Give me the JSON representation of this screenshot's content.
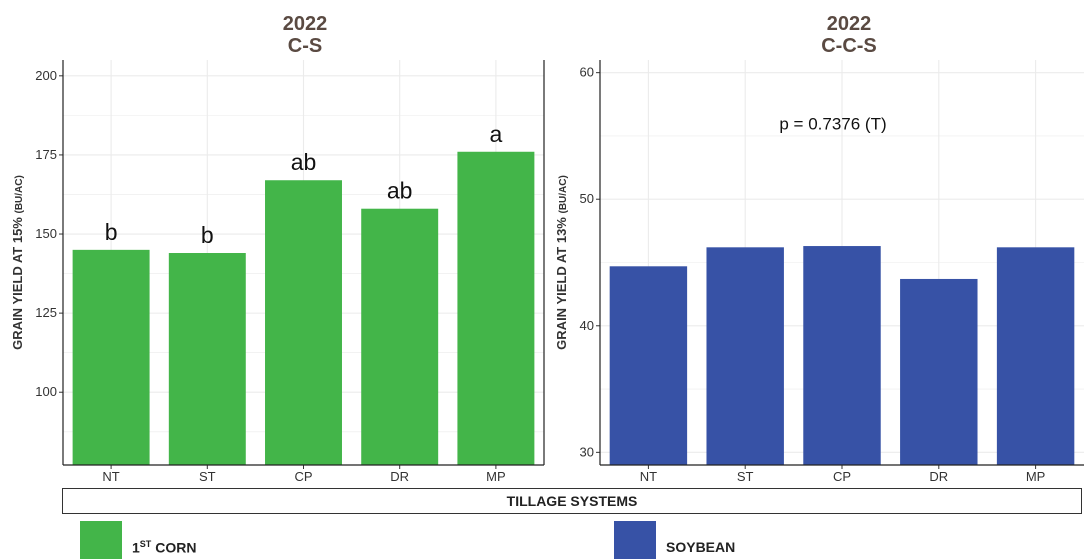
{
  "chart_data": [
    {
      "type": "bar",
      "title": "2022",
      "subtitle": "C-S",
      "categories": [
        "NT",
        "ST",
        "CP",
        "DR",
        "MP"
      ],
      "values": [
        145,
        144,
        167,
        158,
        176
      ],
      "labels": [
        "b",
        "b",
        "ab",
        "ab",
        "a"
      ],
      "ylabel": "GRAIN YIELD AT 15%",
      "ylabel_unit": "(BU/AC)",
      "yticks": [
        100,
        125,
        150,
        175,
        200
      ],
      "ylim": [
        77,
        205
      ],
      "color": "#43b549",
      "grid": true
    },
    {
      "type": "bar",
      "title": "2022",
      "subtitle": "C-C-S",
      "categories": [
        "NT",
        "ST",
        "CP",
        "DR",
        "MP"
      ],
      "values": [
        44.7,
        46.2,
        46.3,
        43.7,
        46.2
      ],
      "annotation": "p = 0.7376 (T)",
      "ylabel": "GRAIN YIELD AT 13%",
      "ylabel_unit": "(BU/AC)",
      "yticks": [
        30,
        40,
        50,
        60
      ],
      "ylim": [
        29,
        61
      ],
      "color": "#3752a6",
      "grid": true
    }
  ],
  "xlabel": "TILLAGE SYSTEMS",
  "legend": [
    {
      "label": "1ST CORN",
      "base": "1",
      "sup": "ST",
      "rest": " CORN",
      "color": "#43b549"
    },
    {
      "label": "SOYBEAN",
      "color": "#3752a6"
    }
  ]
}
